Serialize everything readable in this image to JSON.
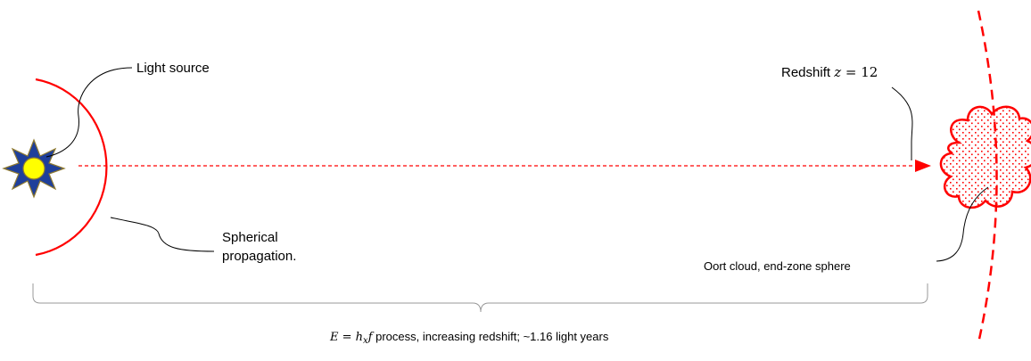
{
  "labels": {
    "light_source": "Light source",
    "spherical_line1": "Spherical",
    "spherical_line2": "propagation.",
    "redshift_prefix": "Redshift ",
    "redshift_var": "z",
    "redshift_eq": " = ",
    "redshift_value": "12",
    "oort": "Oort cloud, end-zone sphere",
    "bottom_E": "E",
    "bottom_eq": " = ",
    "bottom_h": "h",
    "bottom_sub": "x",
    "bottom_f": "f",
    "bottom_text": " process, increasing redshift; ~1.16 light years"
  },
  "colors": {
    "red": "#ff0000",
    "sun_fill": "#ffff00",
    "star_fill": "#1f3f9a",
    "star_stroke": "#8f7a30",
    "brace": "#999999",
    "leader": "#000000"
  },
  "icons": {
    "source": "sun-star-icon",
    "target": "cloud-icon"
  }
}
